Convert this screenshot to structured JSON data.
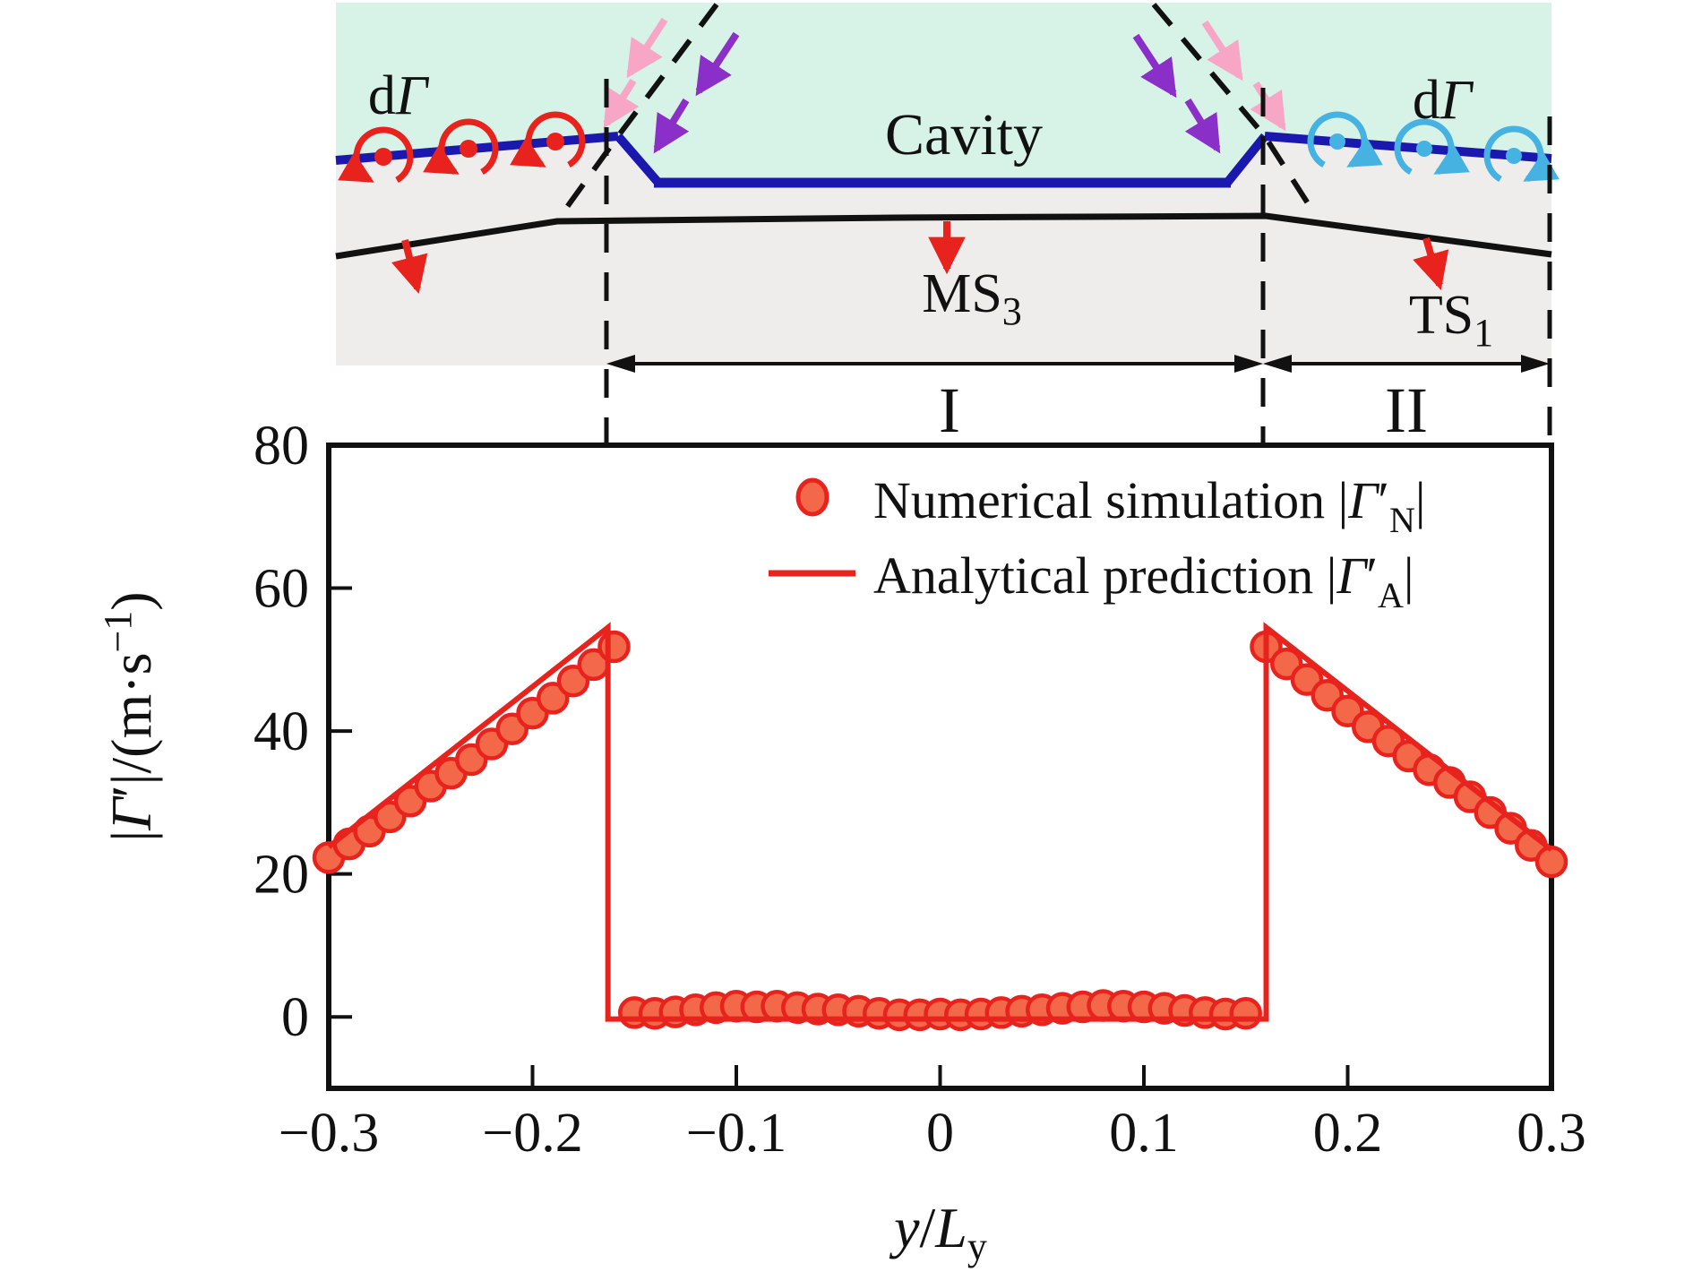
{
  "schematic": {
    "d_gamma_left": {
      "d": "d",
      "gamma": "Γ"
    },
    "d_gamma_right": {
      "d": "d",
      "gamma": "Γ"
    },
    "cavity_label": "Cavity",
    "ms3": {
      "base": "MS",
      "sub": "3"
    },
    "ts1": {
      "base": "TS",
      "sub": "1"
    },
    "region1_label": "I",
    "region2_label": "II"
  },
  "legend": {
    "numerical": {
      "prefix": "Numerical simulation |",
      "gamma": "Γ",
      "prime": "′",
      "sub": "N",
      "suffix": "|"
    },
    "analytical": {
      "prefix": "Analytical prediction |",
      "gamma": "Γ",
      "prime": "′",
      "sub": "A",
      "suffix": "|"
    }
  },
  "axis_labels": {
    "y_parts": {
      "p1": "|",
      "gamma": "Γ",
      "prime": "′",
      "p2": "|/(m·s",
      "sup": "−1",
      "p3": ")"
    },
    "x_parts": {
      "y": "y",
      "slash": "/",
      "L": "L",
      "sub": "y"
    }
  },
  "colors": {
    "red": "#e8221c",
    "dot_fill": "#f4684a",
    "blue_line": "#1a18ae",
    "cavity_fill": "#d7f2e7",
    "substrate_fill": "#efedeb",
    "pink_arrow": "#f7a6c6",
    "purple_arrow": "#8b2fc9",
    "light_blue": "#45b2e2",
    "black": "#111111"
  },
  "chart_data": {
    "type": "line",
    "title": "",
    "xlabel": "y/L_y",
    "ylabel": "|Γ′|/(m·s−1)",
    "xlim": [
      -0.3,
      0.3
    ],
    "ylim": [
      -10,
      80
    ],
    "grid": false,
    "legend_position": "top-center-inside",
    "xticks": {
      "values": [
        -0.3,
        -0.2,
        -0.1,
        0,
        0.1,
        0.2,
        0.3
      ],
      "labels": [
        "−0.3",
        "−0.2",
        "−0.1",
        "0",
        "0.1",
        "0.2",
        "0.3"
      ]
    },
    "yticks": {
      "values": [
        0,
        20,
        40,
        60,
        80
      ],
      "labels": [
        "0",
        "20",
        "40",
        "60",
        "80"
      ]
    },
    "series": [
      {
        "name": "Numerical simulation |Γ′_N|",
        "type": "scatter",
        "marker": "circle",
        "color": "#e8221c",
        "fill": "#f4684a",
        "x": [
          -0.3,
          -0.29,
          -0.28,
          -0.27,
          -0.26,
          -0.25,
          -0.24,
          -0.23,
          -0.22,
          -0.21,
          -0.2,
          -0.19,
          -0.18,
          -0.17,
          -0.16,
          -0.15,
          -0.14,
          -0.13,
          -0.12,
          -0.11,
          -0.1,
          -0.09,
          -0.08,
          -0.07,
          -0.06,
          -0.05,
          -0.04,
          -0.03,
          -0.02,
          -0.01,
          0.0,
          0.01,
          0.02,
          0.03,
          0.04,
          0.05,
          0.06,
          0.07,
          0.08,
          0.09,
          0.1,
          0.11,
          0.12,
          0.13,
          0.14,
          0.15,
          0.16,
          0.17,
          0.18,
          0.19,
          0.2,
          0.21,
          0.22,
          0.23,
          0.24,
          0.25,
          0.26,
          0.27,
          0.28,
          0.29,
          0.3
        ],
        "y": [
          22.3,
          24.2,
          26.0,
          28.0,
          30.2,
          32.3,
          34.1,
          36.0,
          38.2,
          40.3,
          42.5,
          44.6,
          47.0,
          49.3,
          51.8,
          0.6,
          0.5,
          0.7,
          1.0,
          1.3,
          1.5,
          1.4,
          1.5,
          1.3,
          1.1,
          1.0,
          0.8,
          0.5,
          0.3,
          0.3,
          0.4,
          0.3,
          0.4,
          0.6,
          0.8,
          1.0,
          1.2,
          1.4,
          1.6,
          1.5,
          1.4,
          1.2,
          0.9,
          0.6,
          0.4,
          0.5,
          51.8,
          49.4,
          47.2,
          45.0,
          42.8,
          40.6,
          38.6,
          36.5,
          34.6,
          32.8,
          30.8,
          28.6,
          26.4,
          24.0,
          21.7
        ]
      },
      {
        "name": "Analytical prediction |Γ′_A|",
        "type": "line",
        "color": "#e8221c",
        "x": [
          -0.3,
          -0.163,
          -0.163,
          0.16,
          0.16,
          0.3
        ],
        "y": [
          23.8,
          54.5,
          -0.3,
          -0.3,
          54.5,
          23.4
        ]
      }
    ]
  }
}
